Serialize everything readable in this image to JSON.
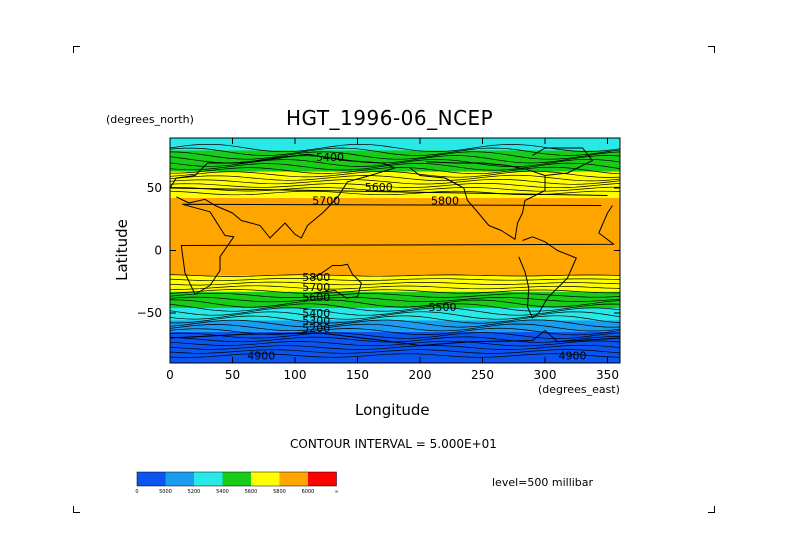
{
  "chart_data": {
    "type": "heatmap",
    "title": "HGT_1996-06_NCEP",
    "xlabel": "Longitude",
    "ylabel": "Latitude",
    "x_units": "(degrees_east)",
    "y_units": "(degrees_north)",
    "xlim": [
      0,
      360
    ],
    "ylim": [
      -90,
      90
    ],
    "x_ticks": [
      "0",
      "50",
      "100",
      "150",
      "200",
      "250",
      "300",
      "350"
    ],
    "y_ticks": [
      "50",
      "0",
      "−50"
    ],
    "x_tick_values": [
      0,
      50,
      100,
      150,
      200,
      250,
      300,
      350
    ],
    "y_tick_values": [
      50,
      0,
      -50
    ],
    "contour_interval_label": "CONTOUR INTERVAL = 5.000E+01",
    "level_label": "level=500 millibar",
    "contour_labels": [
      {
        "text": "5400",
        "lon": 128,
        "lat": 75
      },
      {
        "text": "5600",
        "lon": 167,
        "lat": 51
      },
      {
        "text": "5700",
        "lon": 125,
        "lat": 40
      },
      {
        "text": "5800",
        "lon": 220,
        "lat": 40
      },
      {
        "text": "5800",
        "lon": 117,
        "lat": -21
      },
      {
        "text": "5700",
        "lon": 117,
        "lat": -29
      },
      {
        "text": "5600",
        "lon": 117,
        "lat": -37
      },
      {
        "text": "5500",
        "lon": 218,
        "lat": -45
      },
      {
        "text": "5400",
        "lon": 117,
        "lat": -50
      },
      {
        "text": "5300",
        "lon": 117,
        "lat": -56
      },
      {
        "text": "5200",
        "lon": 117,
        "lat": -62
      },
      {
        "text": "4900",
        "lon": 73,
        "lat": -84
      },
      {
        "text": "4900",
        "lon": 322,
        "lat": -84
      }
    ],
    "bands": [
      {
        "lat_top": 90,
        "lat_bottom": 80,
        "color": "#28e8e8"
      },
      {
        "lat_top": 80,
        "lat_bottom": 63,
        "color": "#18cc18"
      },
      {
        "lat_top": 63,
        "lat_bottom": 48,
        "color": "#ffff00"
      },
      {
        "lat_top": 48,
        "lat_bottom": 42,
        "color": "#ffff00"
      },
      {
        "lat_top": 42,
        "lat_bottom": -20,
        "color": "#ffa500"
      },
      {
        "lat_top": -20,
        "lat_bottom": -33,
        "color": "#ffff00"
      },
      {
        "lat_top": -33,
        "lat_bottom": -46,
        "color": "#18cc18"
      },
      {
        "lat_top": -46,
        "lat_bottom": -56,
        "color": "#28e8e8"
      },
      {
        "lat_top": -56,
        "lat_bottom": -65,
        "color": "#1a9cf0"
      },
      {
        "lat_top": -65,
        "lat_bottom": -90,
        "color": "#0a55f0"
      }
    ],
    "colorbar": {
      "colors": [
        "#0a55f0",
        "#1a9cf0",
        "#28e8e8",
        "#18cc18",
        "#ffff00",
        "#ffa500",
        "#ff0000"
      ],
      "labels": [
        "0",
        "5000",
        "5200",
        "5400",
        "5600",
        "5800",
        "6000",
        "∞"
      ]
    }
  }
}
